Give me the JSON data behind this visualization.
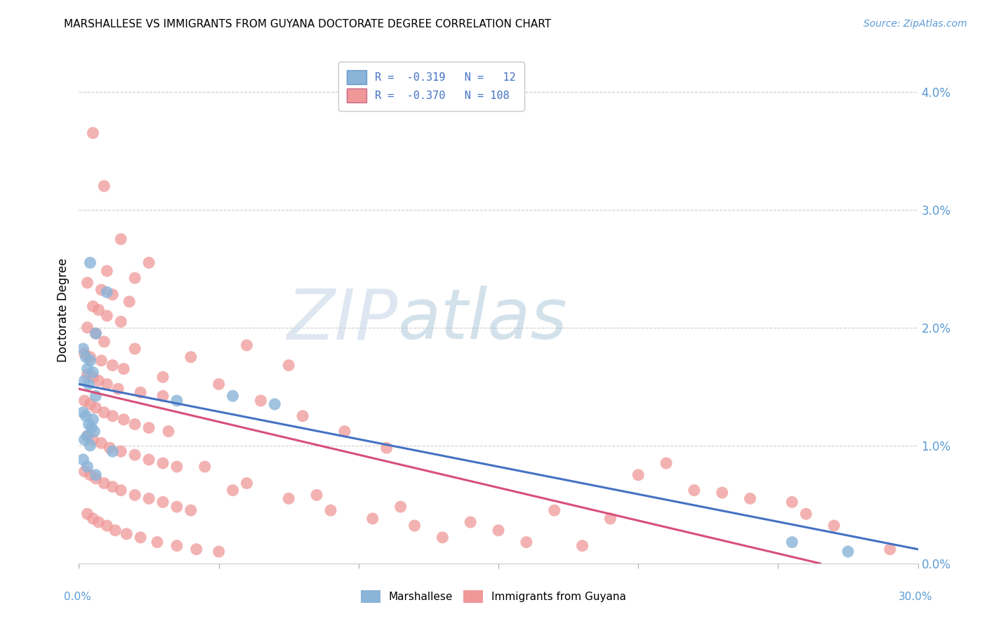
{
  "title": "MARSHALLESE VS IMMIGRANTS FROM GUYANA DOCTORATE DEGREE CORRELATION CHART",
  "source": "Source: ZipAtlas.com",
  "ylabel": "Doctorate Degree",
  "yaxis_ticks": [
    0.0,
    1.0,
    2.0,
    3.0,
    4.0
  ],
  "xaxis_range": [
    0.0,
    30.0
  ],
  "yaxis_range": [
    0.0,
    4.3
  ],
  "legend_title_blue": "Marshallese",
  "legend_title_pink": "Immigrants from Guyana",
  "marker_blue_color": "#8ab4d8",
  "marker_pink_color": "#f09898",
  "line_blue_color": "#4472c4",
  "line_pink_color": "#d94f7a",
  "marshallese_points": [
    [
      0.4,
      2.55
    ],
    [
      1.0,
      2.3
    ],
    [
      0.6,
      1.95
    ],
    [
      0.15,
      1.82
    ],
    [
      0.25,
      1.75
    ],
    [
      0.4,
      1.72
    ],
    [
      0.3,
      1.65
    ],
    [
      0.5,
      1.62
    ],
    [
      0.2,
      1.55
    ],
    [
      0.35,
      1.52
    ],
    [
      0.6,
      1.42
    ],
    [
      5.5,
      1.42
    ],
    [
      7.0,
      1.35
    ],
    [
      0.15,
      1.28
    ],
    [
      0.25,
      1.25
    ],
    [
      0.5,
      1.22
    ],
    [
      0.35,
      1.18
    ],
    [
      0.45,
      1.15
    ],
    [
      0.55,
      1.12
    ],
    [
      0.3,
      1.08
    ],
    [
      0.2,
      1.05
    ],
    [
      0.4,
      1.0
    ],
    [
      1.2,
      0.95
    ],
    [
      0.15,
      0.88
    ],
    [
      0.3,
      0.82
    ],
    [
      3.5,
      1.38
    ],
    [
      0.6,
      0.75
    ],
    [
      25.5,
      0.18
    ],
    [
      27.5,
      0.1
    ]
  ],
  "guyana_points": [
    [
      0.5,
      3.65
    ],
    [
      0.9,
      3.2
    ],
    [
      1.5,
      2.75
    ],
    [
      2.5,
      2.55
    ],
    [
      1.0,
      2.48
    ],
    [
      2.0,
      2.42
    ],
    [
      0.3,
      2.38
    ],
    [
      0.8,
      2.32
    ],
    [
      1.2,
      2.28
    ],
    [
      1.8,
      2.22
    ],
    [
      0.5,
      2.18
    ],
    [
      0.7,
      2.15
    ],
    [
      1.0,
      2.1
    ],
    [
      1.5,
      2.05
    ],
    [
      0.3,
      2.0
    ],
    [
      0.6,
      1.95
    ],
    [
      0.9,
      1.88
    ],
    [
      2.0,
      1.82
    ],
    [
      0.2,
      1.78
    ],
    [
      0.4,
      1.75
    ],
    [
      0.8,
      1.72
    ],
    [
      1.2,
      1.68
    ],
    [
      1.6,
      1.65
    ],
    [
      0.3,
      1.6
    ],
    [
      0.5,
      1.58
    ],
    [
      0.7,
      1.55
    ],
    [
      1.0,
      1.52
    ],
    [
      1.4,
      1.48
    ],
    [
      2.2,
      1.45
    ],
    [
      3.0,
      1.42
    ],
    [
      0.2,
      1.38
    ],
    [
      0.4,
      1.35
    ],
    [
      0.6,
      1.32
    ],
    [
      0.9,
      1.28
    ],
    [
      1.2,
      1.25
    ],
    [
      1.6,
      1.22
    ],
    [
      2.0,
      1.18
    ],
    [
      2.5,
      1.15
    ],
    [
      3.2,
      1.12
    ],
    [
      0.3,
      1.08
    ],
    [
      0.5,
      1.05
    ],
    [
      0.8,
      1.02
    ],
    [
      1.1,
      0.98
    ],
    [
      1.5,
      0.95
    ],
    [
      2.0,
      0.92
    ],
    [
      2.5,
      0.88
    ],
    [
      3.0,
      0.85
    ],
    [
      3.5,
      0.82
    ],
    [
      0.2,
      0.78
    ],
    [
      0.4,
      0.75
    ],
    [
      0.6,
      0.72
    ],
    [
      0.9,
      0.68
    ],
    [
      1.2,
      0.65
    ],
    [
      1.5,
      0.62
    ],
    [
      2.0,
      0.58
    ],
    [
      2.5,
      0.55
    ],
    [
      3.0,
      0.52
    ],
    [
      3.5,
      0.48
    ],
    [
      4.0,
      0.45
    ],
    [
      0.3,
      0.42
    ],
    [
      0.5,
      0.38
    ],
    [
      0.7,
      0.35
    ],
    [
      1.0,
      0.32
    ],
    [
      1.3,
      0.28
    ],
    [
      1.7,
      0.25
    ],
    [
      2.2,
      0.22
    ],
    [
      2.8,
      0.18
    ],
    [
      3.5,
      0.15
    ],
    [
      4.2,
      0.12
    ],
    [
      5.0,
      0.1
    ],
    [
      6.0,
      1.85
    ],
    [
      7.5,
      1.68
    ],
    [
      5.0,
      1.52
    ],
    [
      6.5,
      1.38
    ],
    [
      8.0,
      1.25
    ],
    [
      9.5,
      1.12
    ],
    [
      11.0,
      0.98
    ],
    [
      4.5,
      0.82
    ],
    [
      6.0,
      0.68
    ],
    [
      7.5,
      0.55
    ],
    [
      9.0,
      0.45
    ],
    [
      10.5,
      0.38
    ],
    [
      12.0,
      0.32
    ],
    [
      15.0,
      0.28
    ],
    [
      13.0,
      0.22
    ],
    [
      16.0,
      0.18
    ],
    [
      18.0,
      0.15
    ],
    [
      20.0,
      0.75
    ],
    [
      22.0,
      0.62
    ],
    [
      24.0,
      0.55
    ],
    [
      26.0,
      0.42
    ],
    [
      21.0,
      0.85
    ],
    [
      27.0,
      0.32
    ],
    [
      29.0,
      0.12
    ],
    [
      5.5,
      0.62
    ],
    [
      4.0,
      1.75
    ],
    [
      3.0,
      1.58
    ],
    [
      17.0,
      0.45
    ],
    [
      19.0,
      0.38
    ],
    [
      8.5,
      0.58
    ],
    [
      11.5,
      0.48
    ],
    [
      14.0,
      0.35
    ],
    [
      23.0,
      0.6
    ],
    [
      25.5,
      0.52
    ]
  ],
  "blue_line": {
    "x0": 0.0,
    "y0": 1.52,
    "x1": 30.0,
    "y1": 0.12
  },
  "pink_line": {
    "x0": 0.0,
    "y0": 1.48,
    "x1": 26.5,
    "y1": 0.0
  }
}
